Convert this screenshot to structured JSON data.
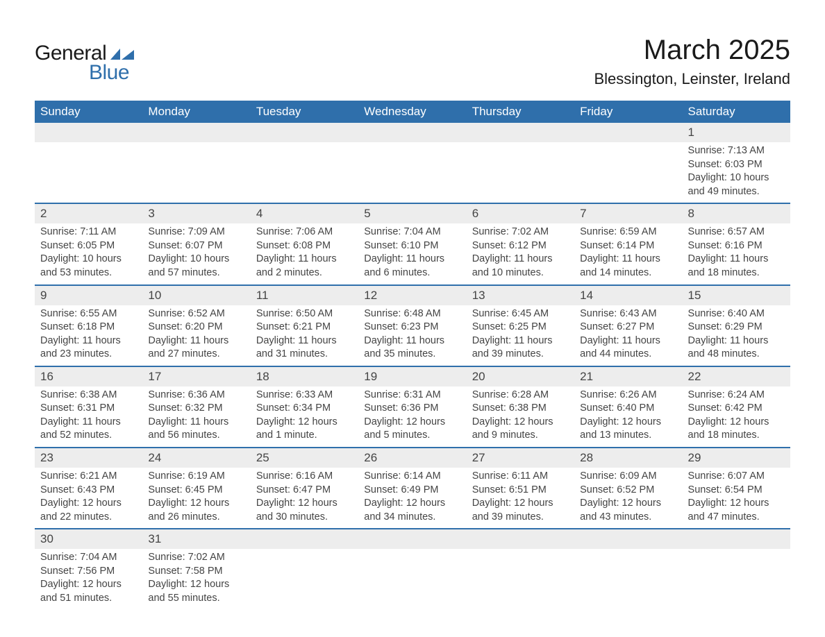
{
  "brand": {
    "line1": "General",
    "line2": "Blue",
    "logo_color": "#2f6fab"
  },
  "title": "March 2025",
  "location": "Blessington, Leinster, Ireland",
  "colors": {
    "header_bg": "#2f6fab",
    "header_text": "#ffffff",
    "daynum_bg": "#ededed",
    "text": "#444444",
    "row_border": "#2f6fab"
  },
  "day_headers": [
    "Sunday",
    "Monday",
    "Tuesday",
    "Wednesday",
    "Thursday",
    "Friday",
    "Saturday"
  ],
  "weeks": [
    [
      null,
      null,
      null,
      null,
      null,
      null,
      {
        "n": "1",
        "sr": "Sunrise: 7:13 AM",
        "ss": "Sunset: 6:03 PM",
        "d1": "Daylight: 10 hours",
        "d2": "and 49 minutes."
      }
    ],
    [
      {
        "n": "2",
        "sr": "Sunrise: 7:11 AM",
        "ss": "Sunset: 6:05 PM",
        "d1": "Daylight: 10 hours",
        "d2": "and 53 minutes."
      },
      {
        "n": "3",
        "sr": "Sunrise: 7:09 AM",
        "ss": "Sunset: 6:07 PM",
        "d1": "Daylight: 10 hours",
        "d2": "and 57 minutes."
      },
      {
        "n": "4",
        "sr": "Sunrise: 7:06 AM",
        "ss": "Sunset: 6:08 PM",
        "d1": "Daylight: 11 hours",
        "d2": "and 2 minutes."
      },
      {
        "n": "5",
        "sr": "Sunrise: 7:04 AM",
        "ss": "Sunset: 6:10 PM",
        "d1": "Daylight: 11 hours",
        "d2": "and 6 minutes."
      },
      {
        "n": "6",
        "sr": "Sunrise: 7:02 AM",
        "ss": "Sunset: 6:12 PM",
        "d1": "Daylight: 11 hours",
        "d2": "and 10 minutes."
      },
      {
        "n": "7",
        "sr": "Sunrise: 6:59 AM",
        "ss": "Sunset: 6:14 PM",
        "d1": "Daylight: 11 hours",
        "d2": "and 14 minutes."
      },
      {
        "n": "8",
        "sr": "Sunrise: 6:57 AM",
        "ss": "Sunset: 6:16 PM",
        "d1": "Daylight: 11 hours",
        "d2": "and 18 minutes."
      }
    ],
    [
      {
        "n": "9",
        "sr": "Sunrise: 6:55 AM",
        "ss": "Sunset: 6:18 PM",
        "d1": "Daylight: 11 hours",
        "d2": "and 23 minutes."
      },
      {
        "n": "10",
        "sr": "Sunrise: 6:52 AM",
        "ss": "Sunset: 6:20 PM",
        "d1": "Daylight: 11 hours",
        "d2": "and 27 minutes."
      },
      {
        "n": "11",
        "sr": "Sunrise: 6:50 AM",
        "ss": "Sunset: 6:21 PM",
        "d1": "Daylight: 11 hours",
        "d2": "and 31 minutes."
      },
      {
        "n": "12",
        "sr": "Sunrise: 6:48 AM",
        "ss": "Sunset: 6:23 PM",
        "d1": "Daylight: 11 hours",
        "d2": "and 35 minutes."
      },
      {
        "n": "13",
        "sr": "Sunrise: 6:45 AM",
        "ss": "Sunset: 6:25 PM",
        "d1": "Daylight: 11 hours",
        "d2": "and 39 minutes."
      },
      {
        "n": "14",
        "sr": "Sunrise: 6:43 AM",
        "ss": "Sunset: 6:27 PM",
        "d1": "Daylight: 11 hours",
        "d2": "and 44 minutes."
      },
      {
        "n": "15",
        "sr": "Sunrise: 6:40 AM",
        "ss": "Sunset: 6:29 PM",
        "d1": "Daylight: 11 hours",
        "d2": "and 48 minutes."
      }
    ],
    [
      {
        "n": "16",
        "sr": "Sunrise: 6:38 AM",
        "ss": "Sunset: 6:31 PM",
        "d1": "Daylight: 11 hours",
        "d2": "and 52 minutes."
      },
      {
        "n": "17",
        "sr": "Sunrise: 6:36 AM",
        "ss": "Sunset: 6:32 PM",
        "d1": "Daylight: 11 hours",
        "d2": "and 56 minutes."
      },
      {
        "n": "18",
        "sr": "Sunrise: 6:33 AM",
        "ss": "Sunset: 6:34 PM",
        "d1": "Daylight: 12 hours",
        "d2": "and 1 minute."
      },
      {
        "n": "19",
        "sr": "Sunrise: 6:31 AM",
        "ss": "Sunset: 6:36 PM",
        "d1": "Daylight: 12 hours",
        "d2": "and 5 minutes."
      },
      {
        "n": "20",
        "sr": "Sunrise: 6:28 AM",
        "ss": "Sunset: 6:38 PM",
        "d1": "Daylight: 12 hours",
        "d2": "and 9 minutes."
      },
      {
        "n": "21",
        "sr": "Sunrise: 6:26 AM",
        "ss": "Sunset: 6:40 PM",
        "d1": "Daylight: 12 hours",
        "d2": "and 13 minutes."
      },
      {
        "n": "22",
        "sr": "Sunrise: 6:24 AM",
        "ss": "Sunset: 6:42 PM",
        "d1": "Daylight: 12 hours",
        "d2": "and 18 minutes."
      }
    ],
    [
      {
        "n": "23",
        "sr": "Sunrise: 6:21 AM",
        "ss": "Sunset: 6:43 PM",
        "d1": "Daylight: 12 hours",
        "d2": "and 22 minutes."
      },
      {
        "n": "24",
        "sr": "Sunrise: 6:19 AM",
        "ss": "Sunset: 6:45 PM",
        "d1": "Daylight: 12 hours",
        "d2": "and 26 minutes."
      },
      {
        "n": "25",
        "sr": "Sunrise: 6:16 AM",
        "ss": "Sunset: 6:47 PM",
        "d1": "Daylight: 12 hours",
        "d2": "and 30 minutes."
      },
      {
        "n": "26",
        "sr": "Sunrise: 6:14 AM",
        "ss": "Sunset: 6:49 PM",
        "d1": "Daylight: 12 hours",
        "d2": "and 34 minutes."
      },
      {
        "n": "27",
        "sr": "Sunrise: 6:11 AM",
        "ss": "Sunset: 6:51 PM",
        "d1": "Daylight: 12 hours",
        "d2": "and 39 minutes."
      },
      {
        "n": "28",
        "sr": "Sunrise: 6:09 AM",
        "ss": "Sunset: 6:52 PM",
        "d1": "Daylight: 12 hours",
        "d2": "and 43 minutes."
      },
      {
        "n": "29",
        "sr": "Sunrise: 6:07 AM",
        "ss": "Sunset: 6:54 PM",
        "d1": "Daylight: 12 hours",
        "d2": "and 47 minutes."
      }
    ],
    [
      {
        "n": "30",
        "sr": "Sunrise: 7:04 AM",
        "ss": "Sunset: 7:56 PM",
        "d1": "Daylight: 12 hours",
        "d2": "and 51 minutes."
      },
      {
        "n": "31",
        "sr": "Sunrise: 7:02 AM",
        "ss": "Sunset: 7:58 PM",
        "d1": "Daylight: 12 hours",
        "d2": "and 55 minutes."
      },
      null,
      null,
      null,
      null,
      null
    ]
  ]
}
